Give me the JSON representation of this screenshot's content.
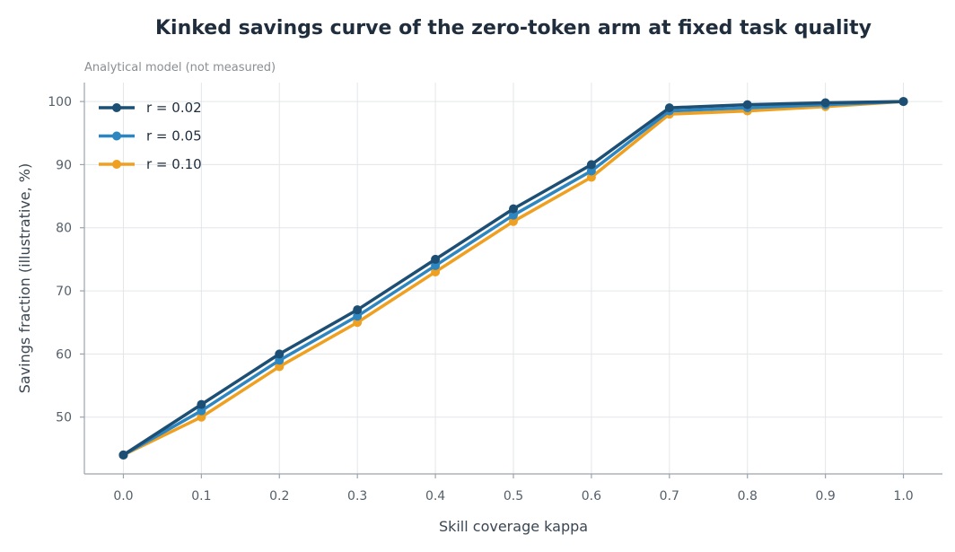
{
  "chart_data": {
    "type": "line",
    "title": "Kinked savings curve of the zero-token arm at fixed task quality",
    "subtitle": "Analytical model (not measured)",
    "xlabel": "Skill coverage kappa",
    "ylabel": "Savings fraction (illustrative, %)",
    "x": [
      0.0,
      0.1,
      0.2,
      0.3,
      0.4,
      0.5,
      0.6,
      0.7,
      0.8,
      0.9,
      1.0
    ],
    "x_tick_labels": [
      "0.0",
      "0.1",
      "0.2",
      "0.3",
      "0.4",
      "0.5",
      "0.6",
      "0.7",
      "0.8",
      "0.9",
      "1.0"
    ],
    "xlim": [
      -0.05,
      1.05
    ],
    "y_ticks": [
      50,
      60,
      70,
      80,
      90,
      100
    ],
    "y_tick_labels": [
      "50",
      "60",
      "70",
      "80",
      "90",
      "100"
    ],
    "ylim": [
      41,
      103
    ],
    "grid": true,
    "legend_position": "top-left",
    "series": [
      {
        "name": "r = 0.02",
        "color": "#1d4e73",
        "values": [
          44,
          52,
          60,
          67,
          75,
          83,
          90,
          99,
          99.5,
          99.8,
          100
        ]
      },
      {
        "name": "r = 0.05",
        "color": "#2e86c1",
        "values": [
          44,
          51,
          59,
          66,
          74,
          82,
          89,
          98.5,
          99,
          99.5,
          100
        ]
      },
      {
        "name": "r = 0.10",
        "color": "#f0a020",
        "values": [
          44,
          50,
          58,
          65,
          73,
          81,
          88,
          98,
          98.5,
          99.2,
          100
        ]
      }
    ]
  }
}
